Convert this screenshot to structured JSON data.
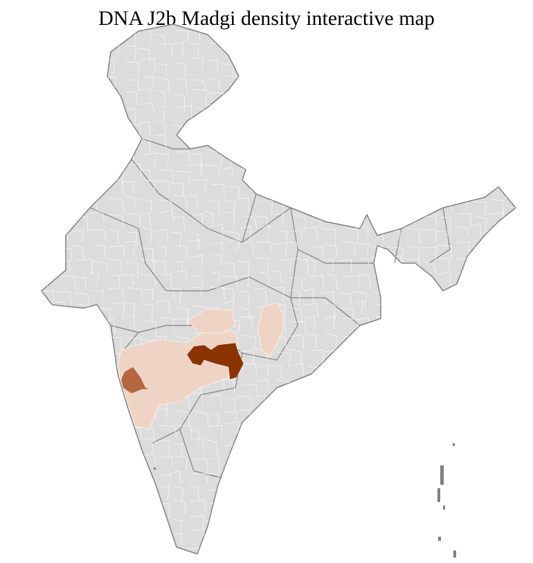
{
  "title": "DNA J2b Madgi density interactive map",
  "map": {
    "region": "India",
    "base_color": "#dcdcdc",
    "border_color": "#808080",
    "district_border_color": "#ffffff",
    "density_colors": {
      "low": "#efd4c6",
      "medium": "#b5673f",
      "high": "#8b3303"
    }
  }
}
